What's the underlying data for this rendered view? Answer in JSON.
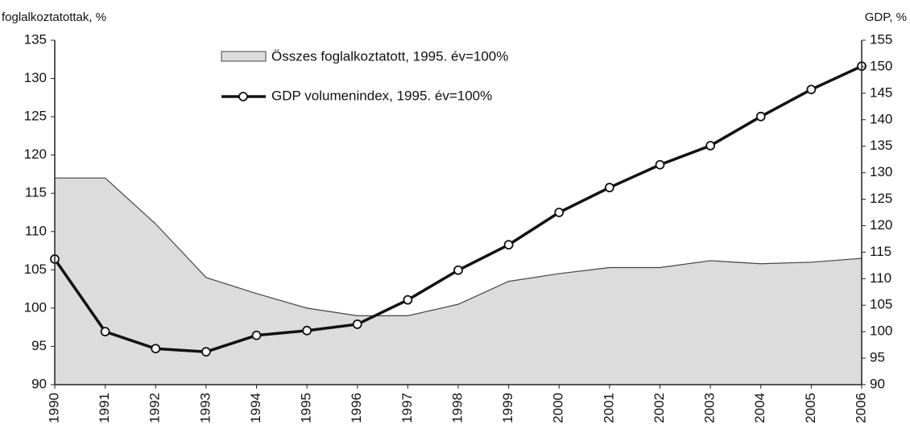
{
  "chart_data": {
    "type": "area-line",
    "y_label": "foglalkoztatottak, %",
    "y2_label": "GDP, %",
    "categories": [
      "1990",
      "1991",
      "1992",
      "1993",
      "1994",
      "1995",
      "1996",
      "1997",
      "1998",
      "1999",
      "2000",
      "2001",
      "2002",
      "2003",
      "2004",
      "2005",
      "2006"
    ],
    "series": [
      {
        "name": "Összes foglalkoztatott, 1995. év=100%",
        "color": "#dcdcdc",
        "kind": "area",
        "values": [
          117,
          117,
          111,
          104,
          101.9,
          100,
          99,
          99,
          100.5,
          103.5,
          104.5,
          105.3,
          105.3,
          106.2,
          105.8,
          106,
          106.5
        ]
      },
      {
        "name": "GDP volumenindex, 1995. év=100%",
        "color": "#111111",
        "kind": "line",
        "axis": "y2",
        "values": [
          113.7,
          100,
          96.8,
          96.2,
          99.3,
          100.2,
          101.4,
          106,
          111.6,
          116.4,
          122.5,
          127.2,
          131.5,
          135.1,
          140.6,
          145.7,
          150.1
        ]
      }
    ],
    "ylim": [
      90,
      135
    ],
    "yticks": [
      90,
      95,
      100,
      105,
      110,
      115,
      120,
      125,
      130,
      135
    ],
    "y2lim": [
      90,
      155
    ],
    "y2ticks": [
      90,
      95,
      100,
      105,
      110,
      115,
      120,
      125,
      130,
      135,
      140,
      145,
      150,
      155
    ]
  }
}
